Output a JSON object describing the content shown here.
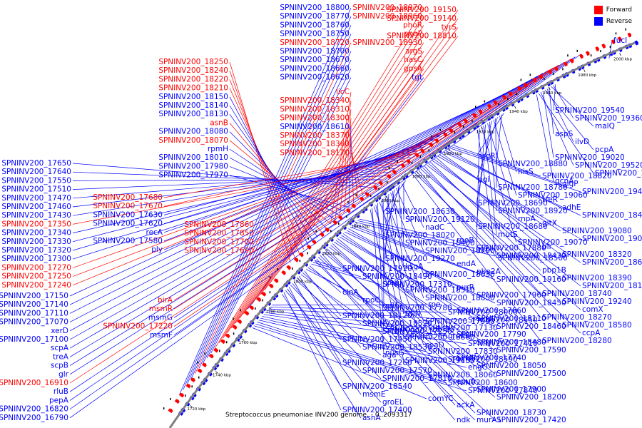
{
  "caption": "Streptococcus pneumoniae INV200 genome. - 0..2093317",
  "legend": [
    {
      "label": "Forward",
      "color": "#ff0000"
    },
    {
      "label": "Reverse",
      "color": "#0000ff"
    }
  ],
  "colors": {
    "forward": "#ff0000",
    "reverse": "#0000ff",
    "backbone": "#808080"
  },
  "ticks": [
    "2000 kbp",
    "1980 kbp",
    "1960 kbp",
    "1940 kbp",
    "1920 kbp",
    "1900 kbp",
    "1880 kbp",
    "1860 kbp",
    "1840 kbp",
    "1820 kbp",
    "1800 kbp",
    "1780 kbp",
    "1760 kbp",
    "1740 kbp",
    "1720 kbp"
  ],
  "labels_left": [
    {
      "t": "SPNINV200_18800",
      "s": "r"
    },
    {
      "t": "SPNINV200_18770",
      "s": "r"
    },
    {
      "t": "SPNINV200_18760",
      "s": "r"
    },
    {
      "t": "SPNINV200_18750",
      "s": "r"
    },
    {
      "t": "SPNINV200_18720",
      "s": "f"
    },
    {
      "t": "SPNINV200_18700",
      "s": "r"
    },
    {
      "t": "SPNINV200_18670",
      "s": "r"
    },
    {
      "t": "SPNINV200_18660",
      "s": "r"
    },
    {
      "t": "SPNINV200_18620",
      "s": "r"
    },
    {
      "t": "SPNINV200_18970",
      "s": "f"
    },
    {
      "t": "SPNINV200_18960",
      "s": "f"
    },
    {
      "t": "phoR",
      "s": "f"
    },
    {
      "t": "phoP",
      "s": "f"
    },
    {
      "t": "SPNINV200_18930",
      "s": "f"
    },
    {
      "t": "argS",
      "s": "f"
    },
    {
      "t": "hasC",
      "s": "f"
    },
    {
      "t": "gpsA",
      "s": "f"
    },
    {
      "t": "tgt",
      "s": "r"
    },
    {
      "t": "SPNINV200_19150",
      "s": "f"
    },
    {
      "t": "SPNINV200_19140",
      "s": "f"
    },
    {
      "t": "tyrS",
      "s": "f"
    },
    {
      "t": "SPNINV200_18810",
      "s": "f"
    },
    {
      "t": "SPNINV200_18250",
      "s": "f"
    },
    {
      "t": "SPNINV200_18240",
      "s": "f"
    },
    {
      "t": "SPNINV200_18220",
      "s": "f"
    },
    {
      "t": "SPNINV200_18210",
      "s": "f"
    },
    {
      "t": "SPNINV200_18150",
      "s": "r"
    },
    {
      "t": "SPNINV200_18140",
      "s": "r"
    },
    {
      "t": "SPNINV200_18130",
      "s": "r"
    },
    {
      "t": "asnB",
      "s": "f"
    },
    {
      "t": "SPNINV200_18080",
      "s": "r"
    },
    {
      "t": "SPNINV200_18070",
      "s": "f"
    },
    {
      "t": "rpmH",
      "s": "r"
    },
    {
      "t": "SPNINV200_18010",
      "s": "r"
    },
    {
      "t": "SPNINV200_17980",
      "s": "r"
    },
    {
      "t": "SPNINV200_17970",
      "s": "r"
    },
    {
      "t": "licC",
      "s": "f"
    },
    {
      "t": "SPNINV200_18340",
      "s": "f"
    },
    {
      "t": "SPNINV200_18310",
      "s": "f"
    },
    {
      "t": "SPNINV200_18300",
      "s": "f"
    },
    {
      "t": "SPNINV200_18610",
      "s": "r"
    },
    {
      "t": "SPNINV200_18370",
      "s": "f"
    },
    {
      "t": "SPNINV200_18360",
      "s": "f"
    },
    {
      "t": "SPNINV200_18170",
      "s": "f"
    },
    {
      "t": "SPNINV200_17650",
      "s": "r"
    },
    {
      "t": "SPNINV200_17640",
      "s": "r"
    },
    {
      "t": "SPNINV200_17550",
      "s": "r"
    },
    {
      "t": "SPNINV200_17510",
      "s": "r"
    },
    {
      "t": "SPNINV200_17470",
      "s": "r"
    },
    {
      "t": "SPNINV200_17460",
      "s": "r"
    },
    {
      "t": "SPNINV200_17430",
      "s": "r"
    },
    {
      "t": "SPNINV200_17350",
      "s": "f"
    },
    {
      "t": "SPNINV200_17340",
      "s": "r"
    },
    {
      "t": "SPNINV200_17330",
      "s": "r"
    },
    {
      "t": "SPNINV200_17320",
      "s": "r"
    },
    {
      "t": "SPNINV200_17300",
      "s": "r"
    },
    {
      "t": "SPNINV200_17270",
      "s": "f"
    },
    {
      "t": "SPNINV200_17250",
      "s": "f"
    },
    {
      "t": "SPNINV200_17240",
      "s": "f"
    },
    {
      "t": "SPNINV200_17680",
      "s": "f"
    },
    {
      "t": "SPNINV200_17670",
      "s": "f"
    },
    {
      "t": "SPNINV200_17630",
      "s": "r"
    },
    {
      "t": "SPNINV200_17620",
      "s": "r"
    },
    {
      "t": "recA",
      "s": "r"
    },
    {
      "t": "SPNINV200_17580",
      "s": "r"
    },
    {
      "t": "ply",
      "s": "r"
    },
    {
      "t": "SPNINV200_17860",
      "s": "f"
    },
    {
      "t": "SPNINV200_17850",
      "s": "f"
    },
    {
      "t": "SPNINV200_17700",
      "s": "f"
    },
    {
      "t": "SPNINV200_17690",
      "s": "f"
    },
    {
      "t": "SPNINV200_17150",
      "s": "r"
    },
    {
      "t": "SPNINV200_17140",
      "s": "r"
    },
    {
      "t": "SPNINV200_17110",
      "s": "r"
    },
    {
      "t": "SPNINV200_17070",
      "s": "r"
    },
    {
      "t": "xerD",
      "s": "r"
    },
    {
      "t": "SPNINV200_17100",
      "s": "r"
    },
    {
      "t": "scpA",
      "s": "r"
    },
    {
      "t": "treA",
      "s": "r"
    },
    {
      "t": "scpB",
      "s": "r"
    },
    {
      "t": "glr",
      "s": "r"
    },
    {
      "t": "SPNINV200_16910",
      "s": "f"
    },
    {
      "t": "rluB",
      "s": "r"
    },
    {
      "t": "pepA",
      "s": "r"
    },
    {
      "t": "SPNINV200_16820",
      "s": "r"
    },
    {
      "t": "SPNINV200_16790",
      "s": "r"
    },
    {
      "t": "birA",
      "s": "f"
    },
    {
      "t": "msmR",
      "s": "f"
    },
    {
      "t": "msmG",
      "s": "r"
    },
    {
      "t": "SPNINV200_17220",
      "s": "f"
    },
    {
      "t": "msmF",
      "s": "r"
    }
  ],
  "labels_right": [
    {
      "t": "fucI",
      "s": "r"
    },
    {
      "t": "SPNINV200_19540",
      "s": "r"
    },
    {
      "t": "SPNINV200_19360",
      "s": "r"
    },
    {
      "t": "malQ",
      "s": "r"
    },
    {
      "t": "aspS",
      "s": "r"
    },
    {
      "t": "ilvD",
      "s": "r"
    },
    {
      "t": "pcpA",
      "s": "r"
    },
    {
      "t": "SPNINV200_19020",
      "s": "r"
    },
    {
      "t": "SPNINV200_19520",
      "s": "r"
    },
    {
      "t": "SPNINV200_19050",
      "s": "r"
    },
    {
      "t": "gcnA",
      "s": "r"
    },
    {
      "t": "argR",
      "s": "r"
    },
    {
      "t": "SPNINV200_18880",
      "s": "r"
    },
    {
      "t": "hisS",
      "s": "r"
    },
    {
      "t": "pgi",
      "s": "r"
    },
    {
      "t": "SPNINV200_18780",
      "s": "r"
    },
    {
      "t": "SPNINV200_19060",
      "s": "r"
    },
    {
      "t": "SPNINV200_18690",
      "s": "r"
    },
    {
      "t": "SPNINV200_18920",
      "s": "r"
    },
    {
      "t": "rnpA",
      "s": "r"
    },
    {
      "t": "SPNINV200_18680",
      "s": "r"
    },
    {
      "t": "mutS",
      "s": "r"
    },
    {
      "t": "SPNINV200_19070",
      "s": "r"
    },
    {
      "t": "tkt",
      "s": "r"
    },
    {
      "t": "SPNINV200_18500",
      "s": "r"
    },
    {
      "t": "SPNINV200_18820",
      "s": "r"
    },
    {
      "t": "glgP",
      "s": "r"
    },
    {
      "t": "SPNINV200_19430",
      "s": "r"
    },
    {
      "t": "treR",
      "s": "r"
    },
    {
      "t": "adhE",
      "s": "r"
    },
    {
      "t": "SPNINV200_18470",
      "s": "r"
    },
    {
      "t": "gltX",
      "s": "r"
    },
    {
      "t": "SPNINV200_19080",
      "s": "r"
    },
    {
      "t": "SPNINV200_19090",
      "s": "r"
    },
    {
      "t": "plr",
      "s": "r"
    },
    {
      "t": "SPNINV200_18320",
      "s": "r"
    },
    {
      "t": "SPNINV200_18650",
      "s": "r"
    },
    {
      "t": "pbp1B",
      "s": "r"
    },
    {
      "t": "SPNINV200_18390",
      "s": "r"
    },
    {
      "t": "SPNINV200_18160",
      "s": "r"
    },
    {
      "t": "SPNINV200_18740",
      "s": "r"
    },
    {
      "t": "SPNINV200_19240",
      "s": "r"
    },
    {
      "t": "comX",
      "s": "r"
    },
    {
      "t": "SPNINV200_18270",
      "s": "r"
    },
    {
      "t": "SPNINV200_18580",
      "s": "r"
    },
    {
      "t": "ccpA",
      "s": "r"
    },
    {
      "t": "SPNINV200_18280",
      "s": "r"
    },
    {
      "t": "SPNINV200_18630",
      "s": "r"
    },
    {
      "t": "SPNINV200_19120",
      "s": "r"
    },
    {
      "t": "nadC",
      "s": "r"
    },
    {
      "t": "SPNINV200_18020",
      "s": "r"
    },
    {
      "t": "SPNINV200_18400",
      "s": "r"
    },
    {
      "t": "SPNINV200_18790",
      "s": "r"
    },
    {
      "t": "SPNINV200_19270",
      "s": "r"
    },
    {
      "t": "ksgA",
      "s": "r"
    },
    {
      "t": "SPNINV200_18030",
      "s": "r"
    },
    {
      "t": "yajC",
      "s": "r"
    },
    {
      "t": "SPNINV200_18510",
      "s": "r"
    },
    {
      "t": "SPNINV200_18850",
      "s": "r"
    },
    {
      "t": "pflC",
      "s": "r"
    },
    {
      "t": "thiN",
      "s": "r"
    },
    {
      "t": "SPNINV200_17990",
      "s": "r"
    },
    {
      "t": "SPNINV200_18420",
      "s": "r"
    },
    {
      "t": "SPNINV200_18860",
      "s": "r"
    },
    {
      "t": "coaD",
      "s": "r"
    },
    {
      "t": "nusG",
      "s": "r"
    },
    {
      "t": "SPNINV200_19130",
      "s": "r"
    },
    {
      "t": "rpoB",
      "s": "r"
    },
    {
      "t": "SPNINV200_17880",
      "s": "r"
    },
    {
      "t": "SPNINV200_18430",
      "s": "r"
    },
    {
      "t": "endA",
      "s": "r"
    },
    {
      "t": "pbp2A",
      "s": "r"
    },
    {
      "t": "SPNINV200_19160",
      "s": "r"
    },
    {
      "t": "purR",
      "s": "r"
    },
    {
      "t": "SPNINV200_17960",
      "s": "r"
    },
    {
      "t": "SPNINV200_18450",
      "s": "r"
    },
    {
      "t": "SPNINV200_17660",
      "s": "r"
    },
    {
      "t": "SPNINV200_18110",
      "s": "r"
    },
    {
      "t": "SPNINV200_18460",
      "s": "r"
    },
    {
      "t": "SPNINV200_17790",
      "s": "r"
    },
    {
      "t": "SPNINV200_18480",
      "s": "r"
    },
    {
      "t": "SPNINV200_17590",
      "s": "r"
    },
    {
      "t": "SPNINV200_17740",
      "s": "r"
    },
    {
      "t": "SPNINV200_18050",
      "s": "r"
    },
    {
      "t": "SPNINV200_17500",
      "s": "r"
    },
    {
      "t": "epuA",
      "s": "r"
    },
    {
      "t": "SPNINV200_17900",
      "s": "r"
    },
    {
      "t": "SPNINV200_18200",
      "s": "r"
    },
    {
      "t": "ackA",
      "s": "r"
    },
    {
      "t": "SPNINV200_18730",
      "s": "r"
    },
    {
      "t": "SPNINV200_17420",
      "s": "r"
    },
    {
      "t": "ndk",
      "s": "r"
    },
    {
      "t": "murA1",
      "s": "r"
    },
    {
      "t": "SPNINV200_17910",
      "s": "r"
    },
    {
      "t": "SPNINV200_18490",
      "s": "r"
    },
    {
      "t": "SPNINV200_17310",
      "s": "r"
    },
    {
      "t": "cinA",
      "s": "r"
    },
    {
      "t": "rpoC",
      "s": "r"
    },
    {
      "t": "SPNINV200_17780",
      "s": "r"
    },
    {
      "t": "SPNINV200_18120",
      "s": "r"
    },
    {
      "t": "SPNINV200_18520",
      "s": "r"
    },
    {
      "t": "SPNINV200_17230",
      "s": "r"
    },
    {
      "t": "SPNINV200_17450",
      "s": "r"
    },
    {
      "t": "SPNINV200_18530",
      "s": "r"
    },
    {
      "t": "aga",
      "s": "r"
    },
    {
      "t": "SPNINV200_17260",
      "s": "r"
    },
    {
      "t": "SPNINV200_17570",
      "s": "r"
    },
    {
      "t": "SPNINV200_17810",
      "s": "r"
    },
    {
      "t": "SPNINV200_18540",
      "s": "r"
    },
    {
      "t": "msmE",
      "s": "r"
    },
    {
      "t": "groEL",
      "s": "r"
    },
    {
      "t": "SPNINV200_17400",
      "s": "r"
    },
    {
      "t": "asnA",
      "s": "r"
    },
    {
      "t": "rpe",
      "s": "r"
    },
    {
      "t": "SPNINV200_18000",
      "s": "r"
    },
    {
      "t": "SPNINV200_18550",
      "s": "r"
    },
    {
      "t": "SPNINV200_17130",
      "s": "r"
    },
    {
      "t": "groES",
      "s": "r"
    },
    {
      "t": "SPNINV200_17410",
      "s": "r"
    },
    {
      "t": "SPNINV200_17830",
      "s": "r"
    },
    {
      "t": "SPNINV200_18590",
      "s": "r"
    },
    {
      "t": "engC",
      "s": "r"
    },
    {
      "t": "SPNINV200_18060",
      "s": "r"
    },
    {
      "t": "SPNINV200_18600",
      "s": "r"
    },
    {
      "t": "SPNINV200_17840",
      "s": "r"
    },
    {
      "t": "comYC",
      "s": "r"
    }
  ]
}
